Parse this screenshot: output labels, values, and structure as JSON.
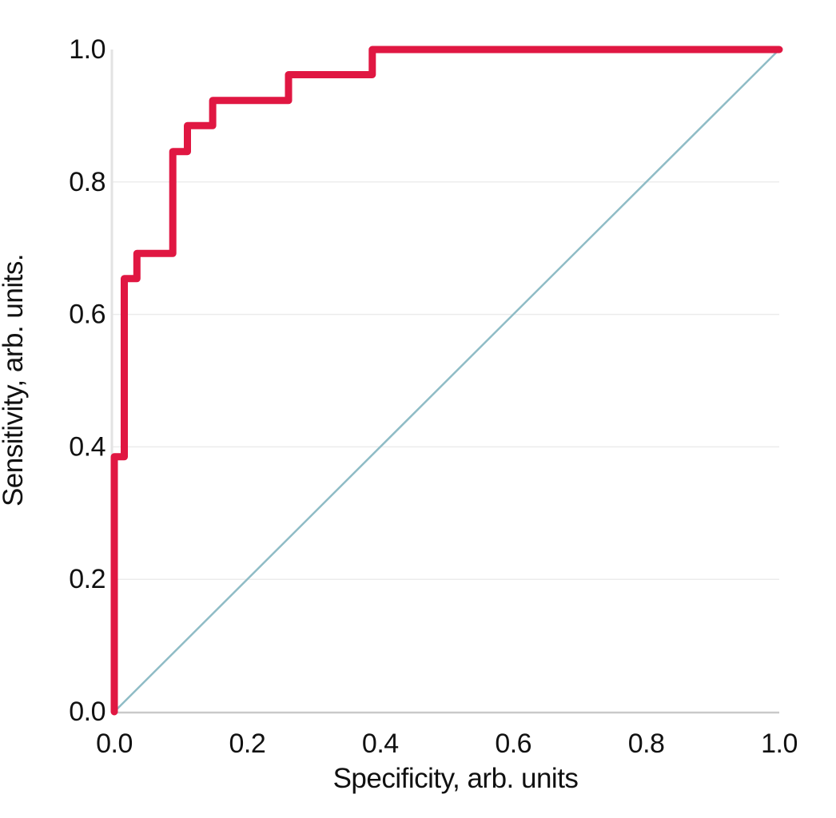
{
  "chart_data": {
    "type": "line",
    "title": "",
    "xlabel": "Specificity, arb. units",
    "ylabel": "Sensitivity, arb. units.",
    "xlim": [
      0,
      1
    ],
    "ylim": [
      0,
      1
    ],
    "x_tick_labels": [
      "0.0",
      "0.2",
      "0.4",
      "0.6",
      "0.8",
      "1.0"
    ],
    "x_tick_values": [
      0,
      0.2,
      0.4,
      0.6,
      0.8,
      1.0
    ],
    "y_tick_labels": [
      "0.0",
      "0.2",
      "0.4",
      "0.6",
      "0.8",
      "1.0"
    ],
    "y_tick_values": [
      0,
      0.2,
      0.4,
      0.6,
      0.8,
      1.0
    ],
    "grid_y_values": [
      0.2,
      0.4,
      0.6,
      0.8
    ],
    "grid_on": true,
    "legend_position": "none",
    "series": [
      {
        "name": "ROC step curve",
        "role": "roc-curve",
        "color": "#e01742",
        "stroke_width": 9,
        "points": [
          [
            0,
            0
          ],
          [
            0,
            0.385
          ],
          [
            0.015,
            0.385
          ],
          [
            0.015,
            0.654
          ],
          [
            0.034,
            0.654
          ],
          [
            0.034,
            0.692
          ],
          [
            0.088,
            0.692
          ],
          [
            0.088,
            0.846
          ],
          [
            0.11,
            0.846
          ],
          [
            0.11,
            0.885
          ],
          [
            0.148,
            0.885
          ],
          [
            0.148,
            0.923
          ],
          [
            0.262,
            0.923
          ],
          [
            0.262,
            0.962
          ],
          [
            0.388,
            0.962
          ],
          [
            0.388,
            1.0
          ],
          [
            1.0,
            1.0
          ]
        ]
      },
      {
        "name": "Chance diagonal",
        "role": "chance-diagonal",
        "color": "#8fbcc6",
        "stroke_width": 2.5,
        "points": [
          [
            0,
            0
          ],
          [
            1,
            1
          ]
        ]
      }
    ],
    "colors": {
      "grid": "#ececec",
      "x_axis_line": "#c9c9c9",
      "y_axis_line": "#e3e3e3",
      "text": "#111111",
      "background": "#ffffff"
    }
  }
}
